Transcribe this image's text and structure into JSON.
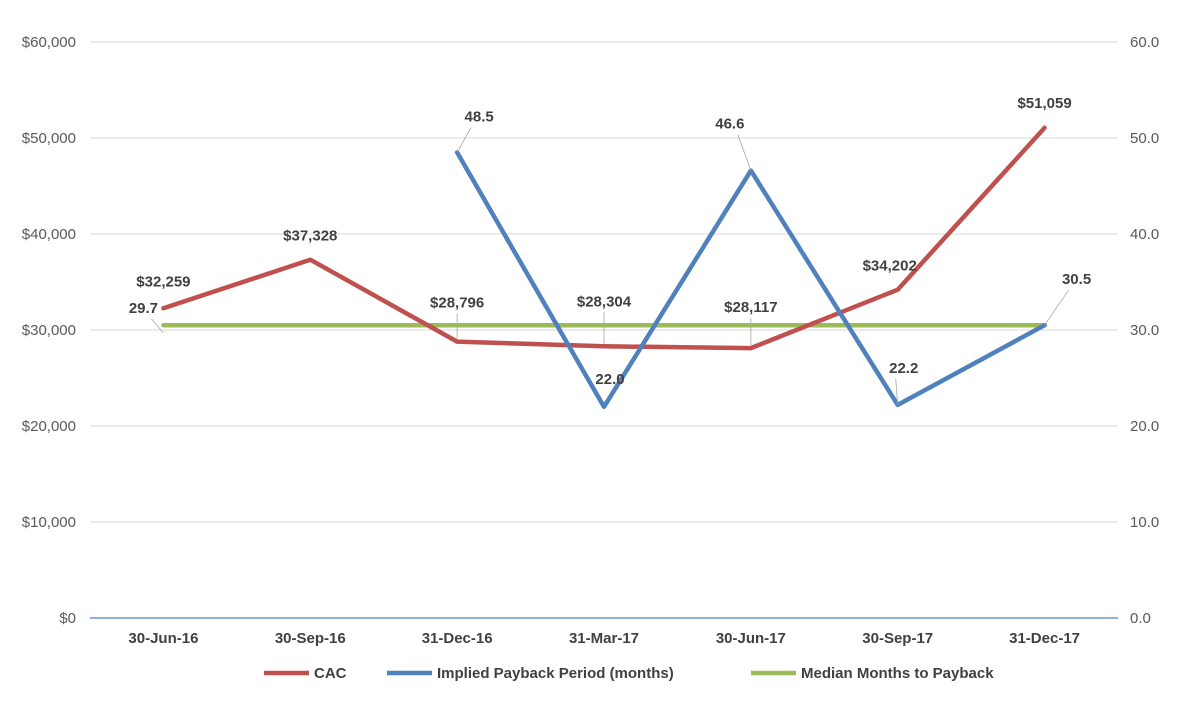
{
  "chart_data": {
    "type": "line",
    "categories": [
      "30-Jun-16",
      "30-Sep-16",
      "31-Dec-16",
      "31-Mar-17",
      "30-Jun-17",
      "30-Sep-17",
      "31-Dec-17"
    ],
    "left_axis": {
      "min": 0,
      "max": 60000,
      "step": 10000,
      "tick_labels": [
        "$0",
        "$10,000",
        "$20,000",
        "$30,000",
        "$40,000",
        "$50,000",
        "$60,000"
      ]
    },
    "right_axis": {
      "min": 0,
      "max": 60,
      "step": 10,
      "tick_labels": [
        "0.0",
        "10.0",
        "20.0",
        "30.0",
        "40.0",
        "50.0",
        "60.0"
      ]
    },
    "grid": true,
    "legend_position": "bottom",
    "series": [
      {
        "name": "CAC",
        "axis": "left",
        "color": "#c0504d",
        "values": [
          32259,
          37328,
          28796,
          28304,
          28117,
          34202,
          51059
        ],
        "labels": [
          "$32,259",
          "$37,328",
          "$28,796",
          "$28,304",
          "$28,117",
          "$34,202",
          "$51,059"
        ]
      },
      {
        "name": "Implied Payback Period (months)",
        "axis": "right",
        "color": "#4f81bd",
        "values": [
          29.7,
          null,
          48.5,
          22.0,
          46.6,
          22.2,
          30.5
        ],
        "labels": [
          "29.7",
          "",
          "48.5",
          "22.0",
          "46.6",
          "22.2",
          "30.5"
        ]
      },
      {
        "name": "Median Months to Payback",
        "axis": "right",
        "color": "#9bbb59",
        "values": [
          30.5,
          30.5,
          30.5,
          30.5,
          30.5,
          30.5,
          30.5
        ]
      }
    ]
  }
}
